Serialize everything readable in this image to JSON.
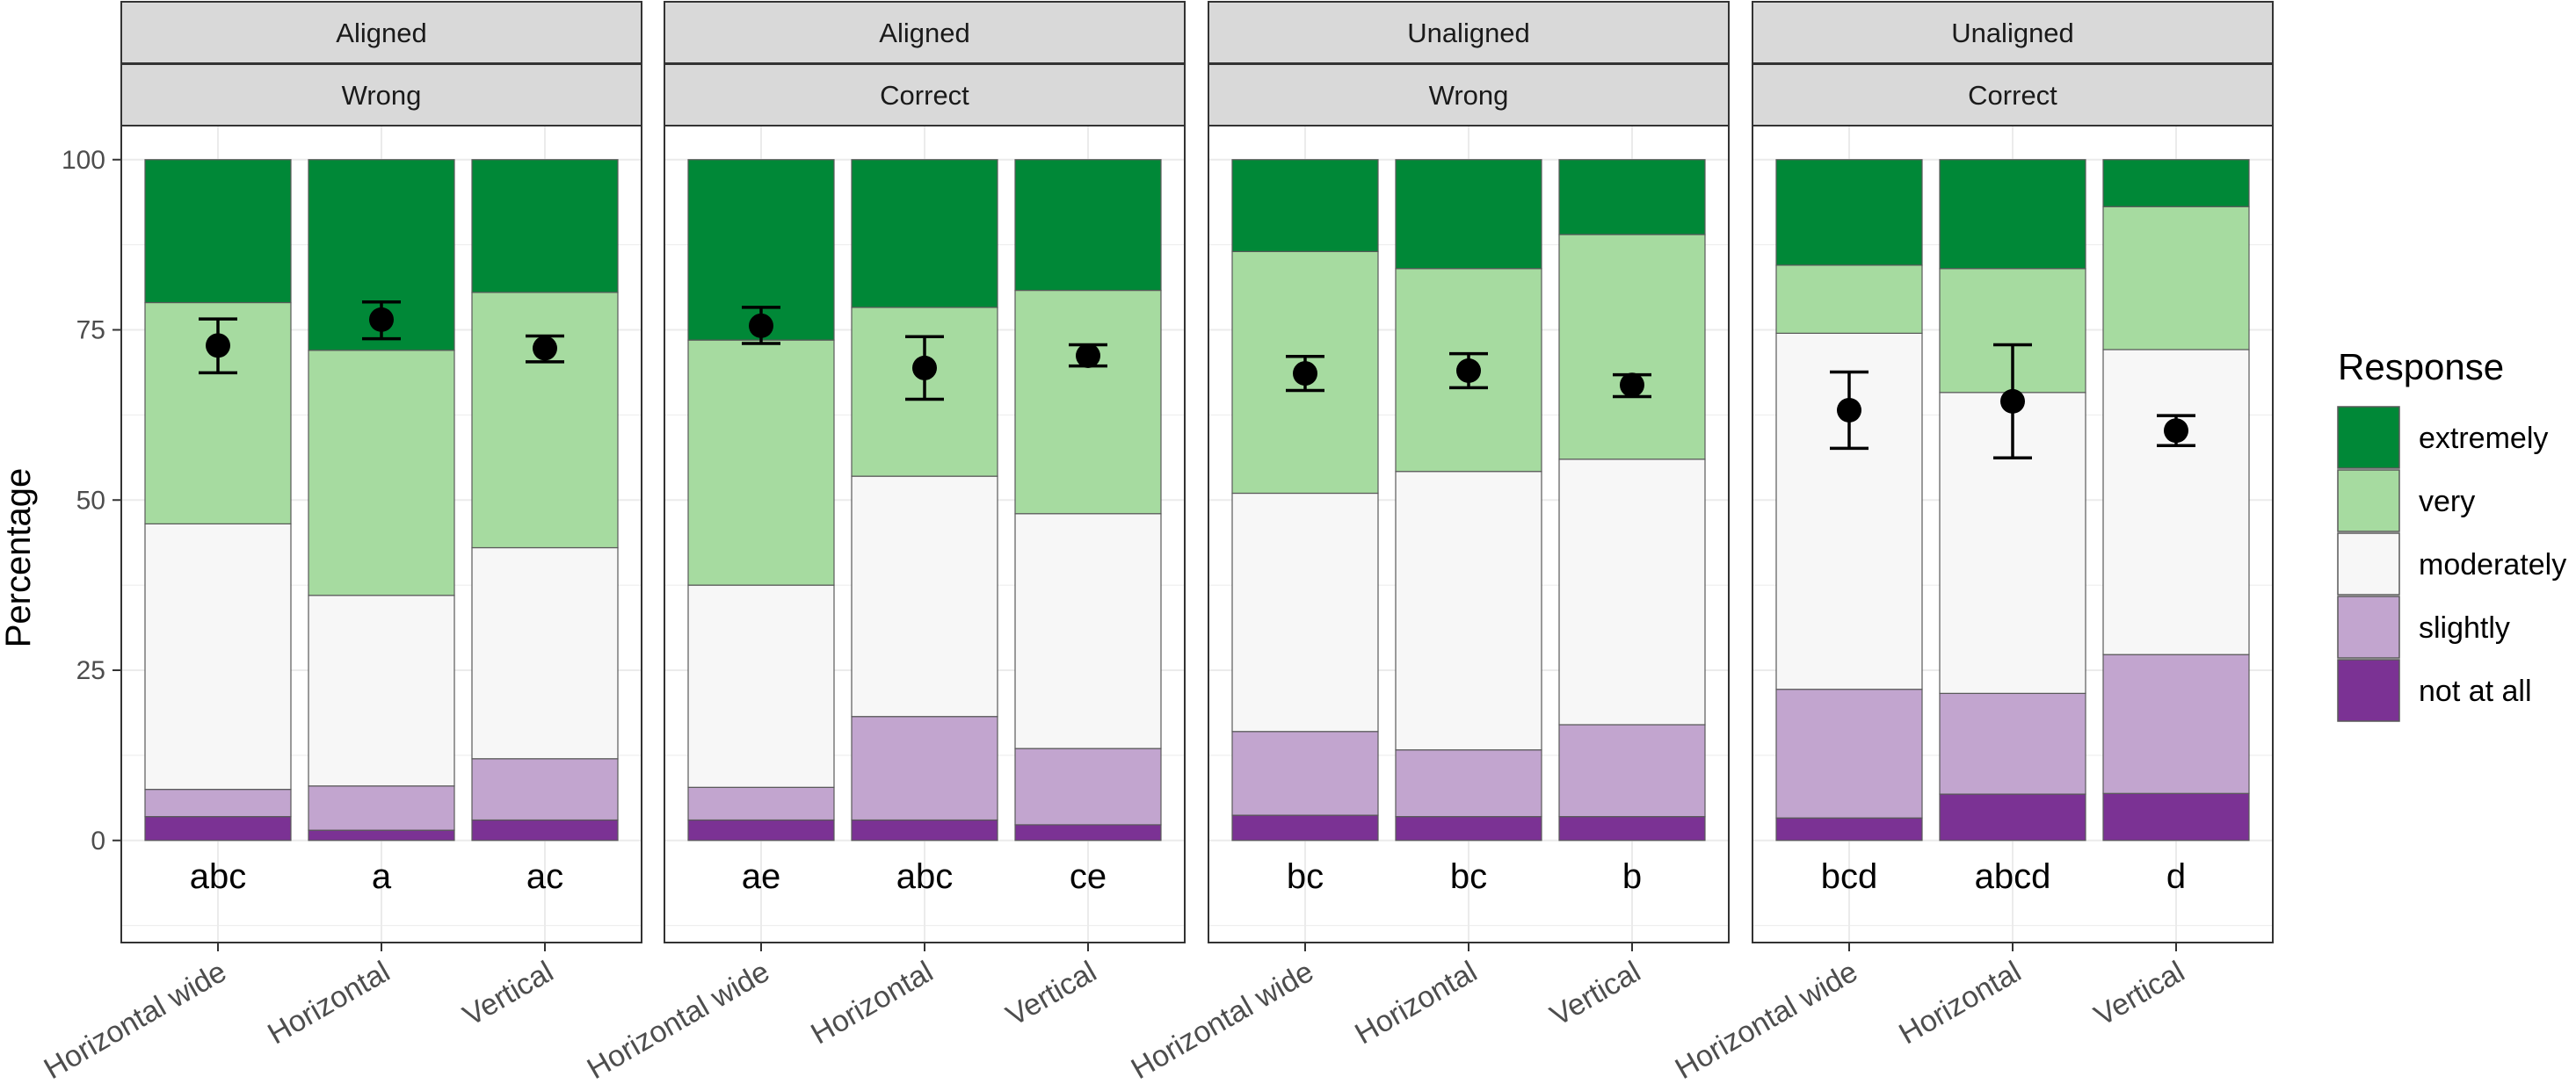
{
  "chart_data": {
    "type": "bar",
    "stacked": true,
    "ylabel": "Percentage",
    "ylim": [
      -15,
      105
    ],
    "yticks": [
      0,
      25,
      50,
      75,
      100
    ],
    "grid": true,
    "legend": {
      "title": "Response",
      "position": "right",
      "entries": [
        "extremely",
        "very",
        "moderately",
        "slightly",
        "not at all"
      ]
    },
    "colors": {
      "extremely": "#008837",
      "very": "#a6dba0",
      "moderately": "#f7f7f7",
      "slightly": "#c2a5cf",
      "not at all": "#7b3294",
      "strip": "#d9d9d9",
      "panel_border": "#333333",
      "grid": "#ebebeb"
    },
    "categories": [
      "Horizontal wide",
      "Horizontal",
      "Vertical"
    ],
    "panels": [
      {
        "strip_top": "Aligned",
        "strip_bottom": "Wrong",
        "bars": [
          {
            "category": "Horizontal wide",
            "not_at_all": 3.5,
            "slightly": 4.0,
            "moderately": 39.0,
            "very": 32.5,
            "extremely": 21.0,
            "mean": 72.7,
            "ci": [
              68.7,
              76.6
            ],
            "letters": "abc"
          },
          {
            "category": "Horizontal",
            "not_at_all": 1.5,
            "slightly": 6.5,
            "moderately": 28.0,
            "very": 36.0,
            "extremely": 28.0,
            "mean": 76.5,
            "ci": [
              73.7,
              79.1
            ],
            "letters": "a"
          },
          {
            "category": "Vertical",
            "not_at_all": 3.0,
            "slightly": 9.0,
            "moderately": 31.0,
            "very": 37.5,
            "extremely": 19.5,
            "mean": 72.3,
            "ci": [
              70.3,
              74.1
            ],
            "letters": "ac"
          }
        ]
      },
      {
        "strip_top": "Aligned",
        "strip_bottom": "Correct",
        "bars": [
          {
            "category": "Horizontal wide",
            "not_at_all": 3.0,
            "slightly": 4.8,
            "moderately": 29.7,
            "very": 36.0,
            "extremely": 26.5,
            "mean": 75.6,
            "ci": [
              73.0,
              78.3
            ],
            "letters": "ae"
          },
          {
            "category": "Horizontal",
            "not_at_all": 3.0,
            "slightly": 15.2,
            "moderately": 35.3,
            "very": 24.8,
            "extremely": 21.7,
            "mean": 69.4,
            "ci": [
              64.8,
              74.0
            ],
            "letters": "abc"
          },
          {
            "category": "Vertical",
            "not_at_all": 2.3,
            "slightly": 11.2,
            "moderately": 34.5,
            "very": 32.8,
            "extremely": 19.2,
            "mean": 71.2,
            "ci": [
              69.7,
              72.8
            ],
            "letters": "ce"
          }
        ]
      },
      {
        "strip_top": "Unaligned",
        "strip_bottom": "Wrong",
        "bars": [
          {
            "category": "Horizontal wide",
            "not_at_all": 3.7,
            "slightly": 12.3,
            "moderately": 35.0,
            "very": 35.5,
            "extremely": 13.5,
            "mean": 68.6,
            "ci": [
              66.1,
              71.1
            ],
            "letters": "bc"
          },
          {
            "category": "Horizontal",
            "not_at_all": 3.5,
            "slightly": 9.8,
            "moderately": 40.9,
            "very": 29.8,
            "extremely": 16.0,
            "mean": 69.0,
            "ci": [
              66.5,
              71.5
            ],
            "letters": "bc"
          },
          {
            "category": "Vertical",
            "not_at_all": 3.5,
            "slightly": 13.5,
            "moderately": 39.0,
            "very": 33.0,
            "extremely": 11.0,
            "mean": 66.9,
            "ci": [
              65.2,
              68.4
            ],
            "letters": "b"
          }
        ]
      },
      {
        "strip_top": "Unaligned",
        "strip_bottom": "Correct",
        "bars": [
          {
            "category": "Horizontal wide",
            "not_at_all": 3.3,
            "slightly": 18.9,
            "moderately": 52.3,
            "very": 10.0,
            "extremely": 15.5,
            "mean": 63.2,
            "ci": [
              57.6,
              68.8
            ],
            "letters": "bcd"
          },
          {
            "category": "Horizontal",
            "not_at_all": 6.8,
            "slightly": 14.8,
            "moderately": 44.2,
            "very": 18.2,
            "extremely": 16.0,
            "mean": 64.5,
            "ci": [
              56.2,
              72.8
            ],
            "letters": "abcd"
          },
          {
            "category": "Vertical",
            "not_at_all": 6.9,
            "slightly": 20.4,
            "moderately": 44.8,
            "very": 21.0,
            "extremely": 6.9,
            "mean": 60.2,
            "ci": [
              58.0,
              62.4
            ],
            "letters": "d"
          }
        ]
      }
    ]
  }
}
